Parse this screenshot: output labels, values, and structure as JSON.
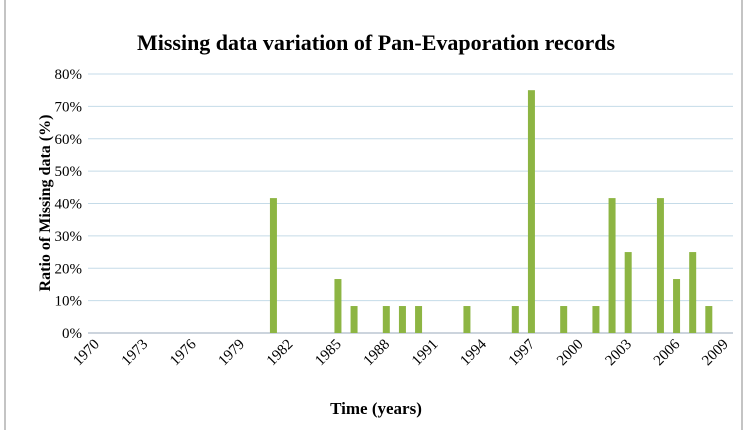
{
  "chart_data": {
    "type": "bar",
    "title": "Missing data variation of Pan-Evaporation records",
    "x_label": "Time (years)",
    "y_label": "Ratio of Missing data (%)",
    "categories": [
      "1970",
      null,
      null,
      "1973",
      null,
      null,
      "1976",
      null,
      null,
      "1979",
      null,
      null,
      "1982",
      null,
      null,
      "1985",
      null,
      null,
      "1988",
      null,
      null,
      "1991",
      null,
      null,
      "1994",
      null,
      null,
      "1997",
      null,
      null,
      "2000",
      null,
      null,
      "2003",
      null,
      null,
      "2006",
      null,
      null,
      "2009"
    ],
    "values": [
      0,
      0,
      0,
      0,
      0,
      0,
      0,
      0,
      0,
      0,
      0,
      41.67,
      0,
      0,
      0,
      16.67,
      8.33,
      0,
      8.33,
      8.33,
      8.33,
      0,
      0,
      8.33,
      0,
      0,
      8.33,
      75,
      0,
      8.33,
      0,
      8.33,
      41.67,
      25,
      0,
      41.67,
      16.67,
      25,
      8.33,
      0
    ],
    "color": "#8db543",
    "ylim": [
      0,
      80
    ],
    "yticks": [
      {
        "value": 0,
        "label": "0%"
      },
      {
        "value": 10,
        "label": "10%"
      },
      {
        "value": 20,
        "label": "20%"
      },
      {
        "value": 30,
        "label": "30%"
      },
      {
        "value": 40,
        "label": "40%"
      },
      {
        "value": 50,
        "label": "50%"
      },
      {
        "value": 60,
        "label": "60%"
      },
      {
        "value": 70,
        "label": "70%"
      },
      {
        "value": 80,
        "label": "80%"
      }
    ],
    "grid": true
  }
}
